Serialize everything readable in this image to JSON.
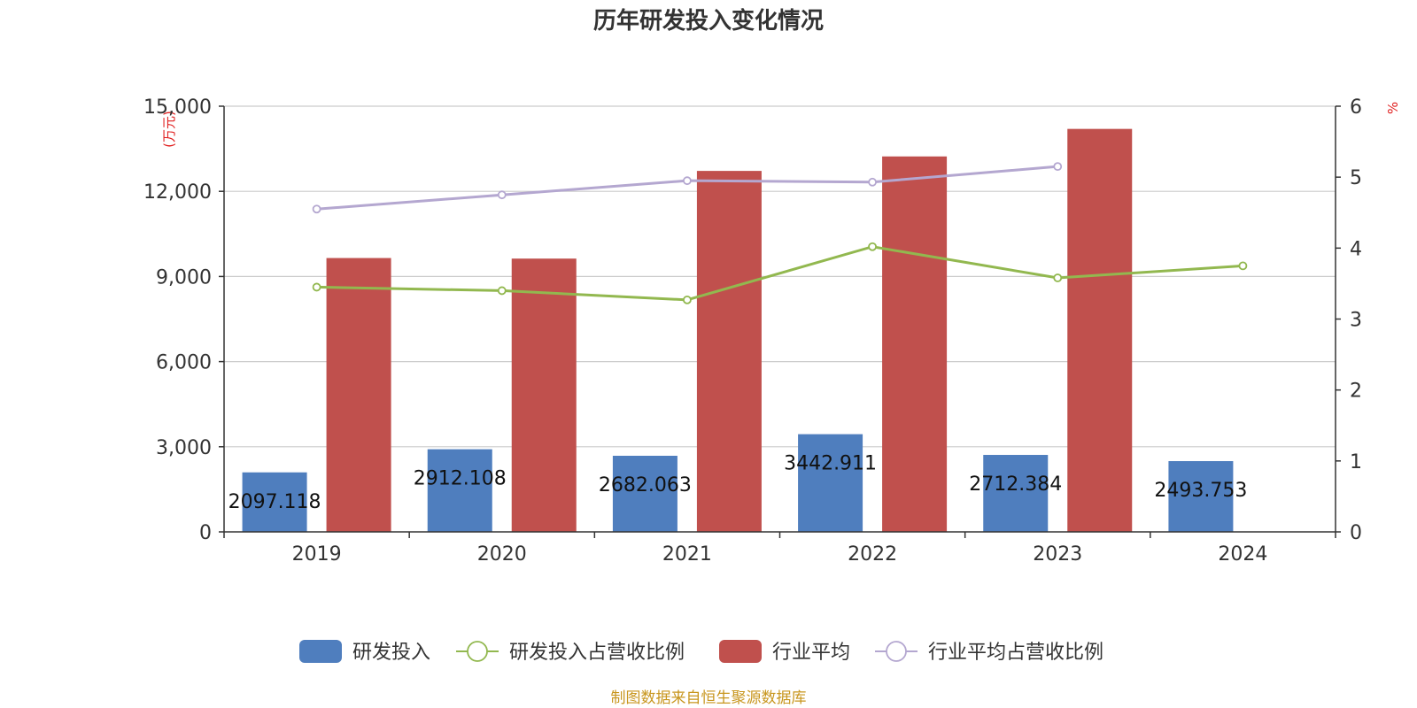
{
  "chart_data": {
    "type": "bar",
    "title": "历年研发投入变化情况",
    "categories": [
      "2019",
      "2020",
      "2021",
      "2022",
      "2023",
      "2024"
    ],
    "y_left": {
      "label": "(万元)",
      "min": 0,
      "max": 15000,
      "ticks": [
        "0",
        "3,000",
        "6,000",
        "9,000",
        "12,000",
        "15,000"
      ],
      "tick_values": [
        0,
        3000,
        6000,
        9000,
        12000,
        15000
      ]
    },
    "y_right": {
      "label": "%",
      "min": 0,
      "max": 6,
      "ticks": [
        "0",
        "1",
        "2",
        "3",
        "4",
        "5",
        "6"
      ],
      "tick_values": [
        0,
        1,
        2,
        3,
        4,
        5,
        6
      ]
    },
    "grid": true,
    "legend_position": "bottom",
    "series": [
      {
        "name": "研发投入",
        "type": "bar",
        "axis": "left",
        "color": "#4f7ebe",
        "values": [
          2097.118,
          2912.108,
          2682.063,
          3442.911,
          2712.384,
          2493.753
        ],
        "labels": [
          "2097.118",
          "2912.108",
          "2682.063",
          "3442.911",
          "2712.384",
          "2493.753"
        ]
      },
      {
        "name": "研发投入占营收比例",
        "type": "line",
        "axis": "right",
        "color": "#92b84f",
        "values": [
          3.45,
          3.4,
          3.27,
          4.02,
          3.58,
          3.75
        ]
      },
      {
        "name": "行业平均",
        "type": "bar",
        "axis": "left",
        "color": "#c0504d",
        "values": [
          9650,
          9630,
          12720,
          13230,
          14200,
          null
        ]
      },
      {
        "name": "行业平均占营收比例",
        "type": "line",
        "axis": "right",
        "color": "#b4a7d0",
        "values": [
          4.55,
          4.75,
          4.95,
          4.93,
          5.15,
          null
        ]
      }
    ]
  },
  "source_text": "制图数据来自恒生聚源数据库"
}
